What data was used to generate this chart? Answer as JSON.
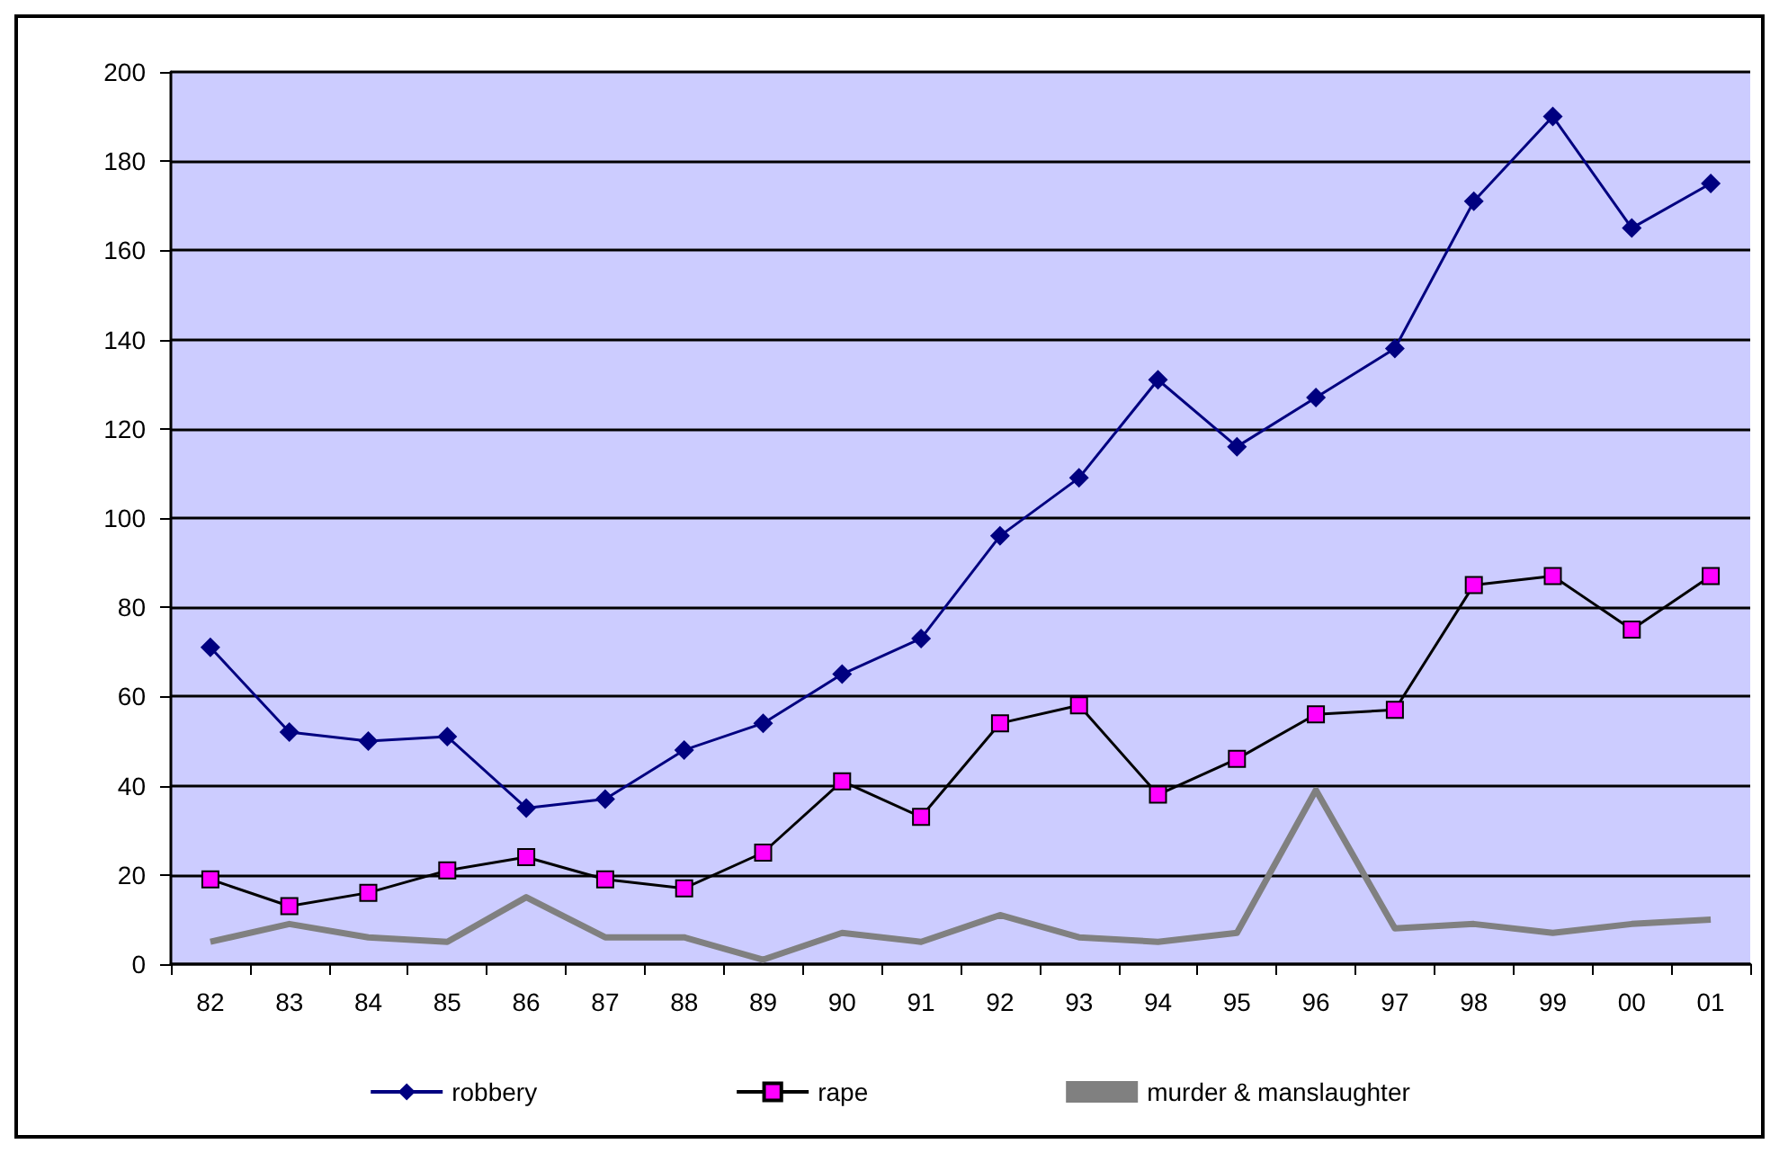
{
  "chart_data": {
    "type": "line",
    "categories": [
      "82",
      "83",
      "84",
      "85",
      "86",
      "87",
      "88",
      "89",
      "90",
      "91",
      "92",
      "93",
      "94",
      "95",
      "96",
      "97",
      "98",
      "99",
      "00",
      "01"
    ],
    "series": [
      {
        "name": "robbery",
        "color": "#000080",
        "marker": "diamond",
        "values": [
          71,
          52,
          50,
          51,
          35,
          37,
          48,
          54,
          65,
          73,
          96,
          109,
          131,
          116,
          127,
          138,
          171,
          190,
          165,
          175
        ]
      },
      {
        "name": "rape",
        "color": "#ff00ff",
        "marker": "square",
        "values": [
          19,
          13,
          16,
          21,
          24,
          19,
          17,
          25,
          41,
          33,
          54,
          58,
          38,
          46,
          56,
          57,
          85,
          87,
          75,
          87
        ]
      },
      {
        "name": "murder & manslaughter",
        "color": "#808080",
        "marker": "none",
        "values": [
          5,
          9,
          6,
          5,
          15,
          6,
          6,
          1,
          7,
          5,
          11,
          6,
          5,
          7,
          39,
          8,
          9,
          7,
          9,
          10
        ]
      }
    ],
    "ylim": [
      0,
      200
    ],
    "yticks": [
      0,
      20,
      40,
      60,
      80,
      100,
      120,
      140,
      160,
      180,
      200
    ],
    "grid": "y",
    "legend": "bottom"
  }
}
